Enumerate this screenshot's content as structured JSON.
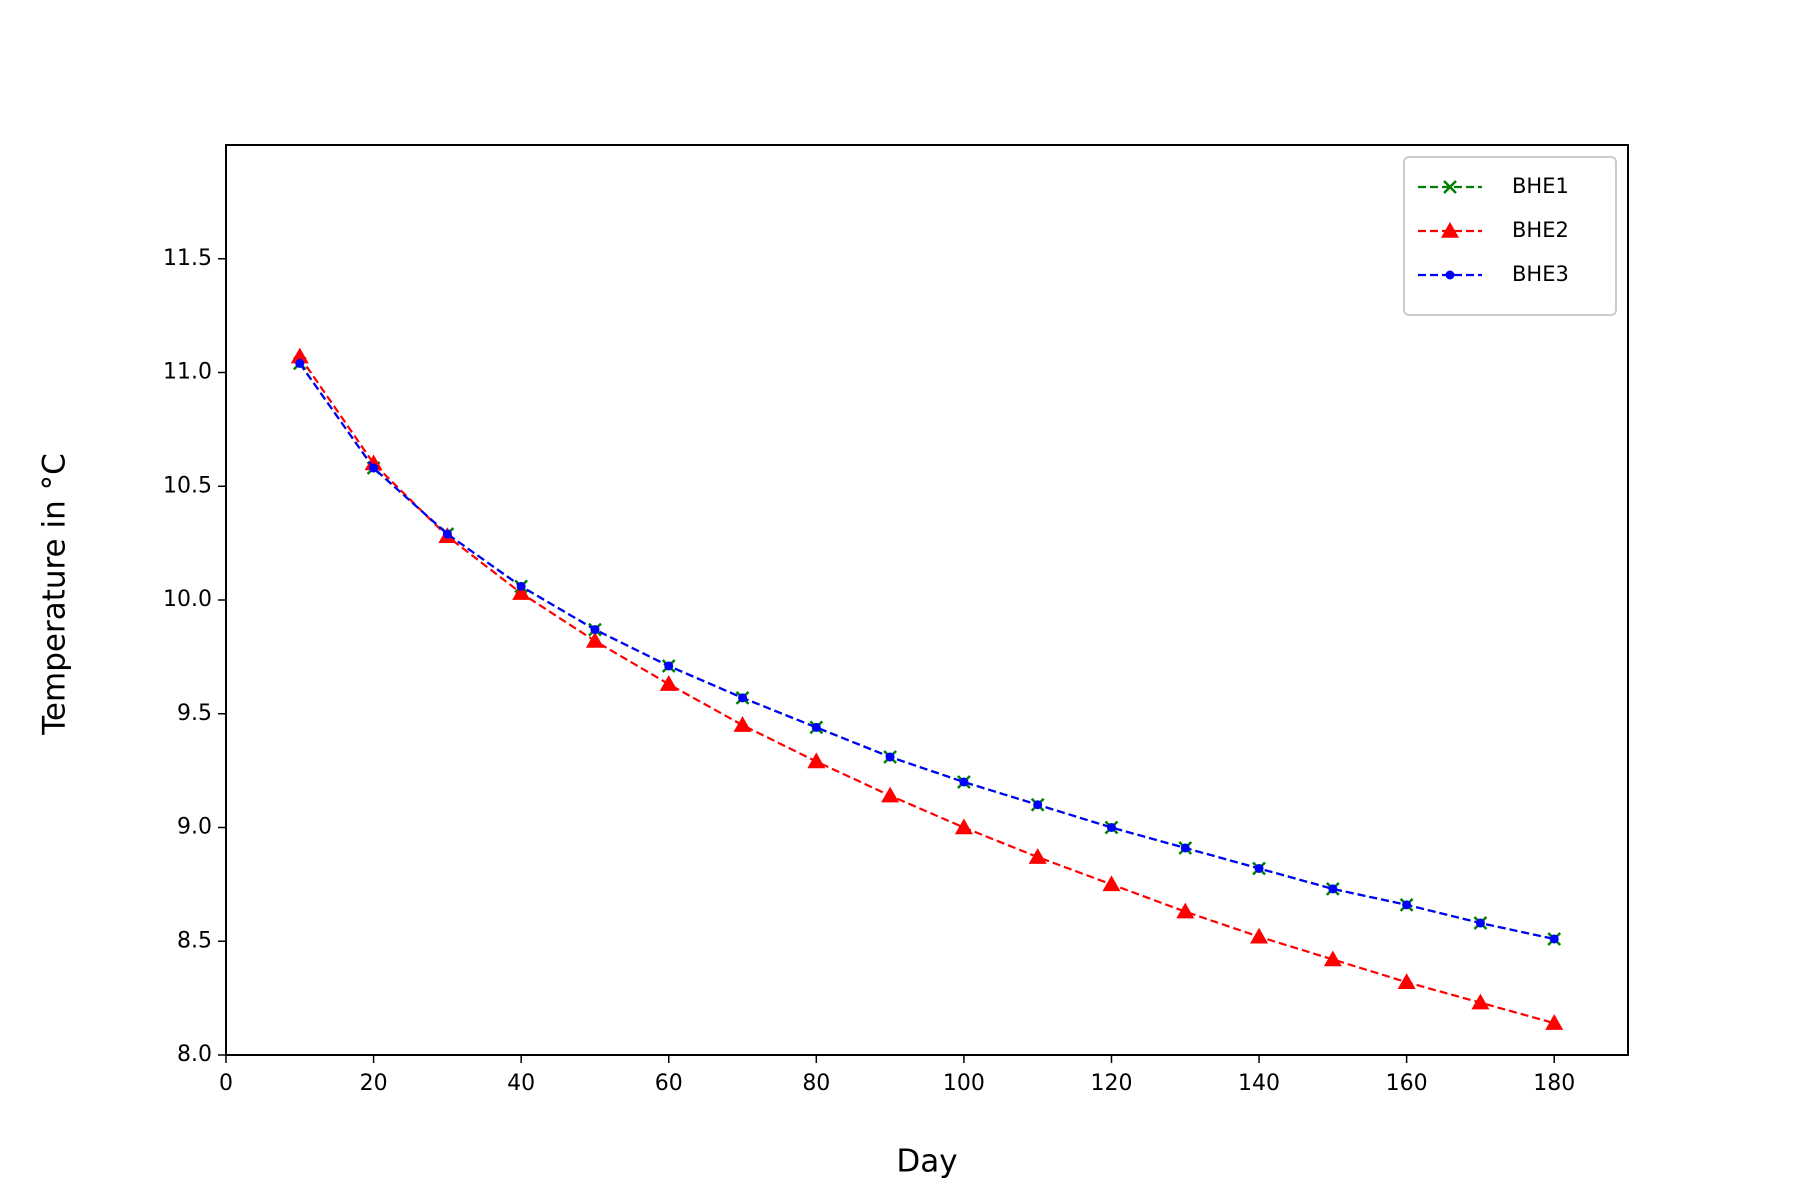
{
  "chart_data": {
    "type": "line",
    "x_label": "Day",
    "y_label": "Temperature in °C",
    "x": [
      10,
      20,
      30,
      40,
      50,
      60,
      70,
      80,
      90,
      100,
      110,
      120,
      130,
      140,
      150,
      160,
      170,
      180
    ],
    "series": [
      {
        "name": "BHE1",
        "color": "#008000",
        "marker": "x",
        "values": [
          11.04,
          10.58,
          10.29,
          10.06,
          9.87,
          9.71,
          9.57,
          9.44,
          9.31,
          9.2,
          9.1,
          9.0,
          8.91,
          8.82,
          8.73,
          8.66,
          8.58,
          8.51
        ]
      },
      {
        "name": "BHE2",
        "color": "#ff0000",
        "marker": "triangle",
        "values": [
          11.07,
          10.6,
          10.28,
          10.03,
          9.82,
          9.63,
          9.45,
          9.29,
          9.14,
          9.0,
          8.87,
          8.75,
          8.63,
          8.52,
          8.42,
          8.32,
          8.23,
          8.14
        ]
      },
      {
        "name": "BHE3",
        "color": "#0000ff",
        "marker": "dot",
        "values": [
          11.04,
          10.58,
          10.29,
          10.06,
          9.87,
          9.71,
          9.57,
          9.44,
          9.31,
          9.2,
          9.1,
          9.0,
          8.91,
          8.82,
          8.73,
          8.66,
          8.58,
          8.51
        ]
      }
    ],
    "xlim": [
      0,
      190
    ],
    "xticks": [
      0,
      20,
      40,
      60,
      80,
      100,
      120,
      140,
      160,
      180
    ],
    "ylim": [
      8,
      12
    ],
    "yticks": [
      {
        "value": 8,
        "label": "8.0"
      },
      {
        "value": 8.5,
        "label": "8.5"
      },
      {
        "value": 9,
        "label": "9.0"
      },
      {
        "value": 9.5,
        "label": "9.5"
      },
      {
        "value": 10,
        "label": "10.0"
      },
      {
        "value": 10.5,
        "label": "10.5"
      },
      {
        "value": 11,
        "label": "11.0"
      },
      {
        "value": 11.5,
        "label": "11.5"
      }
    ],
    "grid": false,
    "legend": "upper right"
  }
}
